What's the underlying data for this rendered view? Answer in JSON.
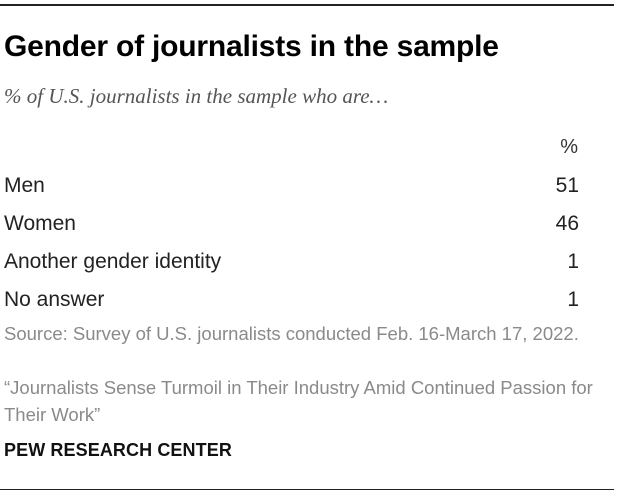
{
  "chart_data": {
    "type": "table",
    "title": "Gender of journalists in the sample",
    "subtitle": "% of U.S. journalists in the sample who are…",
    "column_header": "%",
    "rows": [
      {
        "label": "Men",
        "value": 51
      },
      {
        "label": "Women",
        "value": 46
      },
      {
        "label": "Another gender identity",
        "value": 1
      },
      {
        "label": "No answer",
        "value": 1
      }
    ]
  },
  "footer": {
    "source": "Source: Survey of U.S. journalists conducted Feb. 16-March 17, 2022.",
    "note": "“Journalists Sense Turmoil in Their Industry Amid Continued Passion for Their Work”",
    "brand": "PEW RESEARCH CENTER"
  }
}
